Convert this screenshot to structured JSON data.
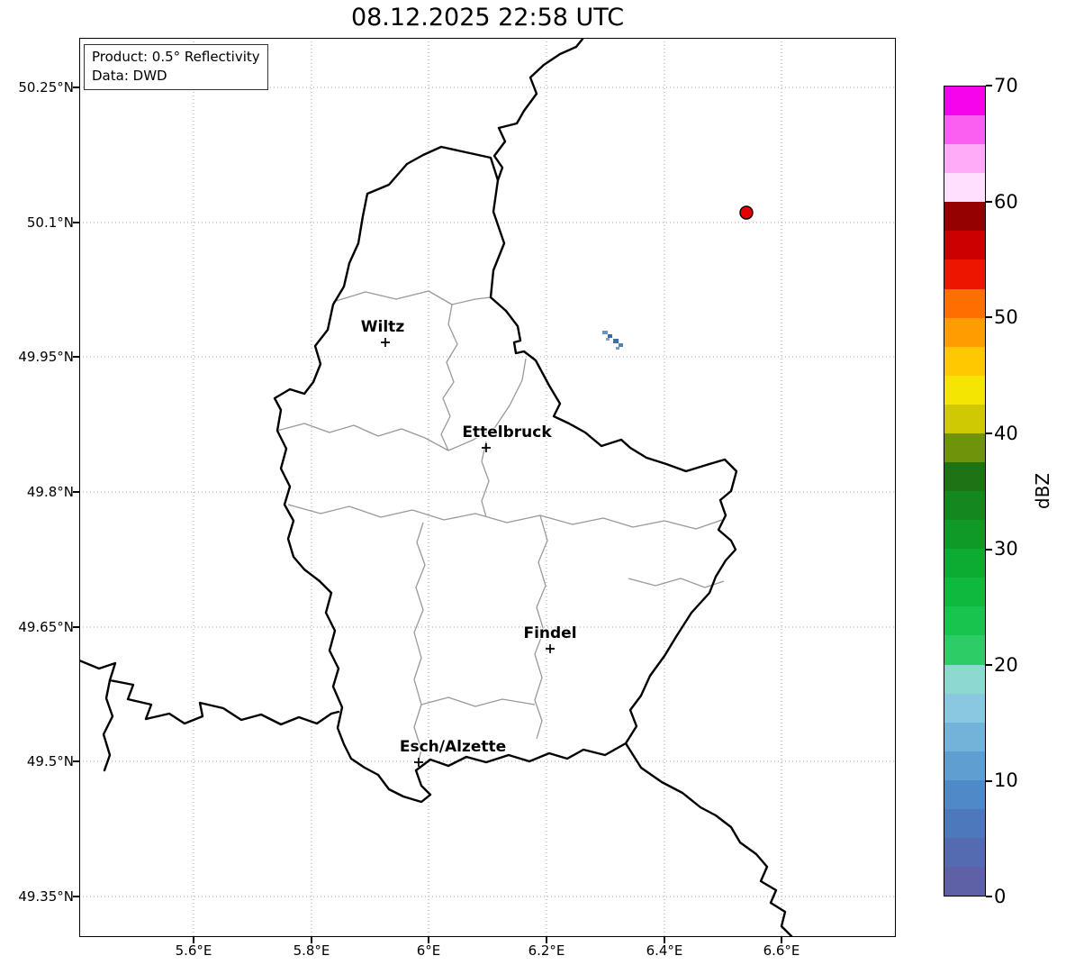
{
  "title": "08.12.2025 22:58 UTC",
  "info_box": {
    "product": "Product: 0.5° Reflectivity",
    "data_source": "Data: DWD"
  },
  "axes": {
    "x_ticks": [
      "5.6°E",
      "5.8°E",
      "6°E",
      "6.2°E",
      "6.4°E",
      "6.6°E"
    ],
    "y_ticks": [
      "50.25°N",
      "50.1°N",
      "49.95°N",
      "49.8°N",
      "49.65°N",
      "49.5°N",
      "49.35°N"
    ]
  },
  "map": {
    "cities": [
      {
        "name": "Wiltz"
      },
      {
        "name": "Ettelbruck"
      },
      {
        "name": "Findel"
      },
      {
        "name": "Esch/Alzette"
      }
    ],
    "radar_site": {
      "color": "#e60000",
      "approx_lon_e": 6.54,
      "approx_lat_n": 50.11
    },
    "echoes": {
      "approx_lon_e": 6.32,
      "approx_lat_n": 49.97,
      "approx_dbz_range": [
        5,
        15
      ],
      "cells": [
        {
          "color": "#6394c6"
        },
        {
          "color": "#40699f"
        },
        {
          "color": "#7aa6cf"
        },
        {
          "color": "#3c6da8"
        },
        {
          "color": "#4f83b8"
        },
        {
          "color": "#6d9cc8"
        }
      ]
    }
  },
  "colorbar": {
    "label": "dBZ",
    "min": 0,
    "max": 70,
    "band_width_dbz": 2.5,
    "tick_values": [
      "70",
      "60",
      "50",
      "40",
      "30",
      "20",
      "10",
      "0"
    ],
    "colors_bottom_to_top": [
      "#5e61a6",
      "#556bb1",
      "#4d78bc",
      "#4f8ac6",
      "#5f9ed0",
      "#74b3d9",
      "#8ac8df",
      "#8ed8d2",
      "#2ecc66",
      "#16c44e",
      "#0fb93e",
      "#0cab31",
      "#0f9a27",
      "#12881e",
      "#1e7415",
      "#6f940c",
      "#cfc904",
      "#f5e503",
      "#ffc800",
      "#ff9c00",
      "#ff6e00",
      "#ee1500",
      "#cc0000",
      "#950000",
      "#ffdffd",
      "#ffabf8",
      "#fb5ff2",
      "#f504ec"
    ]
  }
}
